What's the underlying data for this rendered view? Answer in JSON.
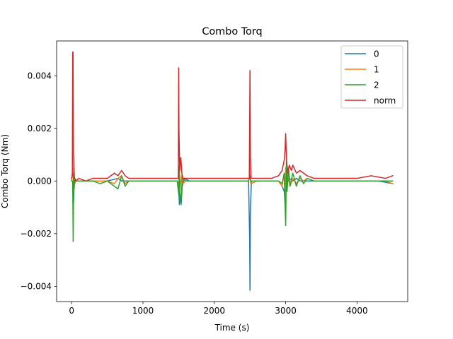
{
  "chart_data": {
    "type": "line",
    "title": "Combo Torq",
    "xlabel": "Time (s)",
    "ylabel": "Combo Torq (Nm)",
    "xlim": [
      -210,
      4710
    ],
    "ylim": [
      -0.00458,
      0.00532
    ],
    "xticks": [
      0,
      1000,
      2000,
      3000,
      4000
    ],
    "xtick_labels": [
      "0",
      "1000",
      "2000",
      "3000",
      "4000"
    ],
    "yticks": [
      -0.004,
      -0.002,
      0.0,
      0.002,
      0.004
    ],
    "ytick_labels": [
      "−0.004",
      "−0.002",
      "0.000",
      "0.002",
      "0.004"
    ],
    "grid": false,
    "legend_position": "top-right",
    "series": [
      {
        "name": "0",
        "color": "#1f77b4",
        "x": [
          0,
          15,
          22,
          28,
          35,
          45,
          60,
          100,
          300,
          500,
          650,
          700,
          800,
          1000,
          1200,
          1400,
          1480,
          1500,
          1510,
          1520,
          1535,
          1550,
          1580,
          1650,
          2000,
          2300,
          2480,
          2495,
          2500,
          2505,
          2520,
          2600,
          2900,
          2950,
          2980,
          2990,
          3000,
          3010,
          3020,
          3050,
          3100,
          3150,
          3200,
          3250,
          3300,
          3500,
          3700,
          3900,
          4100,
          4300,
          4500
        ],
        "y": [
          0.0,
          0.0,
          0.0,
          -0.0008,
          -0.0002,
          0.0001,
          0.0,
          0.0,
          0.0,
          0.0,
          0.0001,
          0.0,
          0.0,
          0.0,
          0.0,
          0.0,
          0.0,
          -0.0002,
          -0.0009,
          -0.0005,
          -0.0009,
          -0.0002,
          0.0001,
          0.0,
          0.0,
          0.0,
          0.0,
          -0.0022,
          -0.00415,
          -0.0012,
          0.0,
          0.0,
          0.0,
          -0.0002,
          -0.0004,
          -0.0008,
          -0.0006,
          0.0002,
          -0.0001,
          0.0001,
          0.0,
          0.0001,
          0.0,
          0.0,
          0.0,
          0.0,
          0.0,
          0.0,
          0.0,
          0.0,
          -0.0001
        ]
      },
      {
        "name": "1",
        "color": "#ff7f0e",
        "x": [
          0,
          15,
          22,
          28,
          35,
          45,
          60,
          100,
          300,
          500,
          600,
          650,
          700,
          750,
          800,
          1000,
          1200,
          1400,
          1480,
          1500,
          1510,
          1520,
          1540,
          1560,
          1600,
          2000,
          2300,
          2480,
          2500,
          2510,
          2600,
          2900,
          2950,
          2980,
          2990,
          3000,
          3010,
          3030,
          3060,
          3100,
          3150,
          3200,
          3250,
          3300,
          3400,
          3600,
          3800,
          4000,
          4200,
          4400,
          4500
        ],
        "y": [
          0.0,
          0.0005,
          0.0001,
          -0.0004,
          0.0001,
          -0.0001,
          0.0,
          0.0,
          0.0,
          0.0,
          -0.0001,
          0.0001,
          0.0002,
          -0.0001,
          0.0,
          0.0,
          0.0,
          0.0,
          0.0,
          -0.0002,
          0.0004,
          -0.0003,
          0.0002,
          -0.0001,
          0.0,
          0.0,
          0.0,
          0.0,
          0.0002,
          -0.0001,
          0.0,
          0.0,
          -0.0002,
          0.0003,
          -0.0007,
          0.0005,
          -0.0003,
          0.0004,
          -0.0002,
          0.0001,
          -0.0001,
          0.0001,
          0.0,
          0.0001,
          0.0,
          0.0,
          0.0,
          0.0,
          0.0,
          0.0,
          -0.0001
        ]
      },
      {
        "name": "2",
        "color": "#2ca02c",
        "x": [
          0,
          15,
          22,
          28,
          35,
          45,
          60,
          100,
          300,
          400,
          500,
          600,
          650,
          700,
          750,
          800,
          1000,
          1200,
          1400,
          1480,
          1500,
          1510,
          1520,
          1535,
          1550,
          1600,
          2000,
          2300,
          2480,
          2500,
          2510,
          2600,
          2900,
          2950,
          2980,
          2990,
          3000,
          3010,
          3020,
          3040,
          3060,
          3100,
          3150,
          3200,
          3250,
          3300,
          3400,
          3600,
          3800,
          4000,
          4200,
          4400,
          4500
        ],
        "y": [
          0.0,
          0.0,
          -0.0023,
          0.0003,
          -0.0003,
          0.0001,
          0.0,
          0.0,
          0.0,
          -0.0001,
          0.0,
          -0.0002,
          -0.0003,
          0.0002,
          -0.0002,
          0.0,
          0.0,
          0.0,
          0.0,
          0.0,
          -0.0005,
          0.0006,
          -0.0008,
          -0.0007,
          0.0001,
          0.0,
          0.0,
          0.0,
          0.0,
          0.0002,
          0.0,
          0.0,
          0.0,
          -0.0001,
          0.0003,
          -0.0008,
          -0.0017,
          0.0008,
          -0.0004,
          0.0005,
          -0.0002,
          0.0003,
          -0.0002,
          0.0002,
          -0.0001,
          0.0001,
          0.0,
          0.0,
          0.0,
          0.0,
          0.0,
          0.0,
          0.0
        ]
      },
      {
        "name": "norm",
        "color": "#d62728",
        "x": [
          0,
          10,
          15,
          20,
          25,
          30,
          40,
          60,
          100,
          200,
          300,
          500,
          550,
          600,
          650,
          700,
          750,
          800,
          900,
          1000,
          1200,
          1400,
          1480,
          1495,
          1500,
          1505,
          1515,
          1530,
          1545,
          1560,
          1600,
          1800,
          2000,
          2300,
          2480,
          2490,
          2500,
          2505,
          2515,
          2600,
          2800,
          2900,
          2950,
          2980,
          2990,
          3000,
          3005,
          3015,
          3030,
          3050,
          3080,
          3100,
          3150,
          3200,
          3250,
          3300,
          3400,
          3600,
          3800,
          4000,
          4200,
          4400,
          4500
        ],
        "y": [
          0.0001,
          0.0002,
          0.0049,
          0.0049,
          0.0011,
          0.0006,
          0.0001,
          0.0,
          0.0001,
          0.0,
          0.0001,
          0.0001,
          0.0002,
          0.0003,
          0.0002,
          0.0004,
          0.0002,
          0.0001,
          0.0001,
          0.0001,
          0.0001,
          0.0001,
          0.0001,
          0.0001,
          0.0043,
          0.0019,
          0.0004,
          0.0009,
          0.0003,
          0.0001,
          0.0001,
          0.0001,
          0.0001,
          0.0001,
          0.0001,
          0.0001,
          0.0042,
          0.0009,
          0.0001,
          0.0001,
          0.0001,
          0.0002,
          0.0004,
          0.0008,
          0.0011,
          0.0018,
          0.0013,
          0.0007,
          0.0003,
          0.0006,
          0.0004,
          0.0006,
          0.0003,
          0.0004,
          0.0003,
          0.0002,
          0.0001,
          0.0001,
          0.0001,
          0.0001,
          0.0002,
          0.0001,
          0.0002
        ]
      }
    ]
  }
}
